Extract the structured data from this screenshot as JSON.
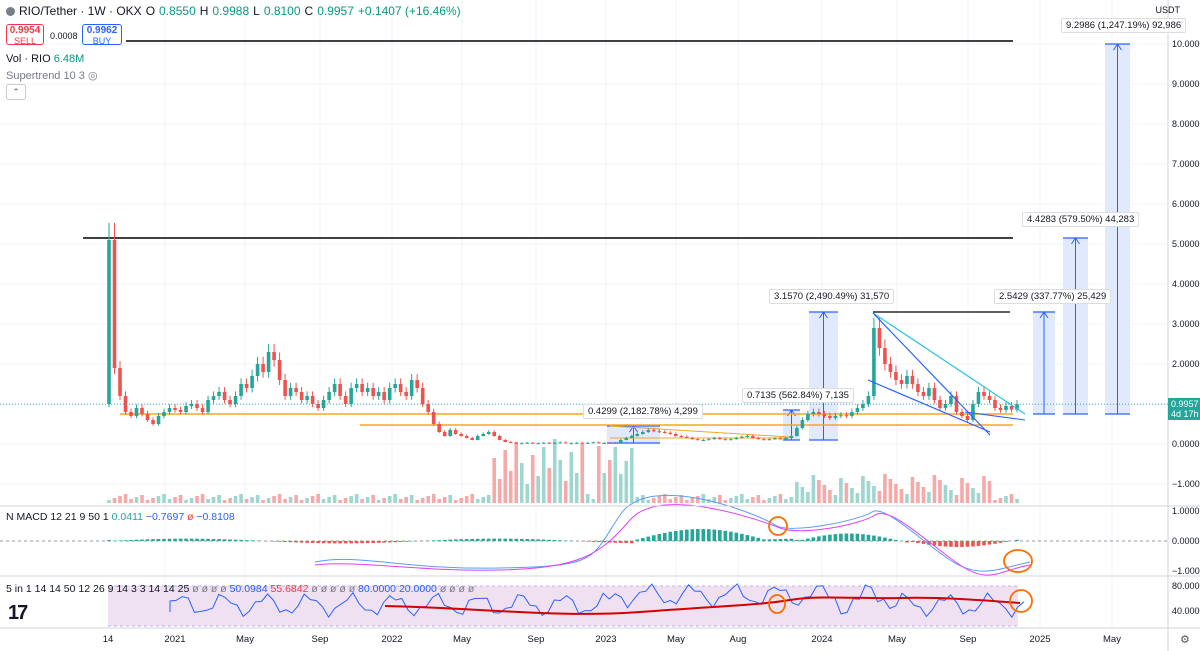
{
  "header": {
    "symbol": "RIO/Tether · 1W · OKX",
    "o_label": "O",
    "o_value": "0.8550",
    "h_label": "H",
    "h_value": "0.9988",
    "l_label": "L",
    "l_value": "0.8100",
    "c_label": "C",
    "c_value": "0.9957",
    "change": "+0.1407 (+16.46%)"
  },
  "trade": {
    "sell_price": "0.9954",
    "sell_label": "SELL",
    "spread": "0.0008",
    "buy_price": "0.9962",
    "buy_label": "BUY"
  },
  "indicators": {
    "vol_label": "Vol · RIO",
    "vol_value": "6.48M",
    "supertrend": "Supertrend 10 3",
    "macd_label": "N MACD 12 21 9 50 1",
    "macd_v1": "0.0411",
    "macd_v2": "−0.7697",
    "macd_v3": "ø",
    "macd_v4": "−0.8108",
    "rsi_label": "5 in 1 14 14 50 12 26 9 14 3 3 14 14 25",
    "rsi_v0": "ø ø ø ø",
    "rsi_v1": "50.0984",
    "rsi_v2": "55.6842",
    "rsi_v3": "ø ø ø ø ø",
    "rsi_v4": "80.0000",
    "rsi_v5": "20.0000",
    "rsi_v6": "ø ø ø ø"
  },
  "currency": "USDT",
  "price_axis": {
    "ticks": [
      "10.0000",
      "9.0000",
      "8.0000",
      "7.0000",
      "6.0000",
      "5.0000",
      "4.0000",
      "3.0000",
      "2.0000",
      "1.0000",
      "0.0000",
      "−1.0000"
    ],
    "current": "0.9957",
    "countdown": "4d 17h",
    "macd_ticks": [
      "1.0000",
      "0.0000",
      "−1.0000"
    ],
    "rsi_ticks": [
      "80.0000",
      "40.0000"
    ]
  },
  "time_axis": [
    "14",
    "2021",
    "May",
    "Sep",
    "2022",
    "May",
    "Sep",
    "2023",
    "May",
    "Aug",
    "2024",
    "May",
    "Sep",
    "2025",
    "May"
  ],
  "annotations": [
    {
      "text": "9.2986 (1,247.19%) 92,986"
    },
    {
      "text": "4.4283 (579.50%) 44,283"
    },
    {
      "text": "3.1570 (2,490.49%) 31,570"
    },
    {
      "text": "2.5429 (337.77%) 25,429"
    },
    {
      "text": "0.7135 (562.84%) 7,135"
    },
    {
      "text": "0.4299 (2,182.78%) 4,299"
    }
  ],
  "colors": {
    "up": "#26a69a",
    "down": "#ef5350",
    "hline": "#000000",
    "support": "#f5a623",
    "wedge": "#2962ff",
    "wedge_top": "#26c6da",
    "target_fill": "#dbe6fb",
    "target_line": "#2962ff",
    "rsi_band": "#efe1f2",
    "circle": "#ff6d00"
  },
  "chart_data": {
    "type": "candlestick",
    "interval": "1W",
    "price_axis_range": [
      -1.5,
      10.5
    ],
    "key_levels": [
      10.0,
      5.15,
      3.3,
      0.75,
      0.5
    ],
    "current_price": 0.9957,
    "targets": [
      {
        "gain": 9.2986,
        "pct": "1,247.19%",
        "to": 10.0
      },
      {
        "gain": 4.4283,
        "pct": "579.50%",
        "to": 5.15
      },
      {
        "gain": 2.5429,
        "pct": "337.77%",
        "to": 3.3
      },
      {
        "gain": 3.157,
        "pct": "2,490.49%",
        "to": 3.3
      },
      {
        "gain": 0.7135,
        "pct": "562.84%",
        "to": 0.85
      },
      {
        "gain": 0.4299,
        "pct": "2,182.78%",
        "to": 0.42
      }
    ],
    "closes": [
      5.1,
      1.9,
      1.2,
      0.8,
      0.7,
      0.9,
      0.75,
      0.6,
      0.5,
      0.7,
      0.8,
      0.9,
      0.85,
      0.8,
      0.95,
      1.0,
      0.9,
      0.8,
      1.1,
      1.2,
      1.3,
      1.1,
      1.0,
      1.2,
      1.5,
      1.4,
      1.7,
      2.0,
      1.8,
      2.3,
      2.1,
      1.6,
      1.2,
      1.4,
      1.3,
      1.1,
      1.2,
      1.0,
      0.9,
      1.1,
      1.3,
      1.5,
      1.2,
      1.0,
      1.4,
      1.5,
      1.3,
      1.4,
      1.2,
      1.3,
      1.1,
      1.4,
      1.5,
      1.3,
      1.2,
      1.6,
      1.4,
      1.0,
      0.8,
      0.5,
      0.3,
      0.2,
      0.35,
      0.25,
      0.2,
      0.15,
      0.1,
      0.2,
      0.25,
      0.3,
      0.2,
      0.1,
      0.05,
      0.03,
      0.02,
      0.02,
      0.03,
      0.02,
      0.02,
      0.03,
      0.02,
      0.03,
      0.04,
      0.02,
      0.02,
      0.03,
      0.02,
      0.03,
      0.04,
      0.03,
      0.03,
      0.02,
      0.03,
      0.1,
      0.15,
      0.2,
      0.25,
      0.3,
      0.35,
      0.32,
      0.3,
      0.28,
      0.25,
      0.2,
      0.18,
      0.15,
      0.12,
      0.1,
      0.1,
      0.12,
      0.15,
      0.12,
      0.1,
      0.12,
      0.15,
      0.18,
      0.2,
      0.15,
      0.12,
      0.1,
      0.12,
      0.14,
      0.12,
      0.15,
      0.2,
      0.4,
      0.6,
      0.75,
      0.8,
      0.75,
      0.7,
      0.65,
      0.7,
      0.72,
      0.7,
      0.8,
      0.9,
      1.0,
      1.2,
      2.9,
      2.4,
      2.0,
      1.8,
      1.6,
      1.5,
      1.7,
      1.5,
      1.3,
      1.2,
      1.4,
      1.1,
      0.9,
      1.0,
      1.2,
      0.8,
      0.7,
      0.6,
      1.0,
      1.3,
      1.2,
      1.1,
      0.9,
      0.85,
      0.95,
      0.86,
      0.9957
    ],
    "opens": [
      1.0,
      5.1,
      1.9,
      1.2,
      0.8,
      0.7,
      0.9,
      0.75,
      0.6,
      0.5,
      0.7,
      0.8,
      0.9,
      0.85,
      0.8,
      0.95,
      1.0,
      0.9,
      0.8,
      1.1,
      1.2,
      1.3,
      1.1,
      1.0,
      1.2,
      1.5,
      1.4,
      1.7,
      2.0,
      1.8,
      2.3,
      2.1,
      1.6,
      1.2,
      1.4,
      1.3,
      1.1,
      1.2,
      1.0,
      0.9,
      1.1,
      1.3,
      1.5,
      1.2,
      1.0,
      1.4,
      1.5,
      1.3,
      1.4,
      1.2,
      1.3,
      1.1,
      1.4,
      1.5,
      1.3,
      1.2,
      1.6,
      1.4,
      1.0,
      0.8,
      0.5,
      0.3,
      0.2,
      0.35,
      0.25,
      0.2,
      0.15,
      0.1,
      0.2,
      0.25,
      0.3,
      0.2,
      0.1,
      0.05,
      0.03,
      0.02,
      0.02,
      0.03,
      0.02,
      0.02,
      0.03,
      0.02,
      0.03,
      0.04,
      0.02,
      0.02,
      0.03,
      0.02,
      0.03,
      0.04,
      0.03,
      0.03,
      0.02,
      0.03,
      0.1,
      0.15,
      0.2,
      0.25,
      0.3,
      0.35,
      0.32,
      0.3,
      0.28,
      0.25,
      0.2,
      0.18,
      0.15,
      0.12,
      0.1,
      0.1,
      0.12,
      0.15,
      0.12,
      0.1,
      0.12,
      0.15,
      0.18,
      0.2,
      0.15,
      0.12,
      0.1,
      0.12,
      0.14,
      0.12,
      0.15,
      0.2,
      0.4,
      0.6,
      0.75,
      0.8,
      0.75,
      0.7,
      0.65,
      0.7,
      0.72,
      0.7,
      0.8,
      0.9,
      1.0,
      1.2,
      2.9,
      2.4,
      2.0,
      1.8,
      1.6,
      1.5,
      1.7,
      1.5,
      1.3,
      1.2,
      1.4,
      1.1,
      0.9,
      1.0,
      1.2,
      0.8,
      0.7,
      0.6,
      1.0,
      1.3,
      1.2,
      1.1,
      0.9,
      0.85,
      0.95,
      0.855
    ],
    "macd_range": [
      -1.4,
      1.4
    ],
    "rsi_range": [
      10,
      100
    ],
    "rsi_bands": [
      80,
      20
    ]
  }
}
